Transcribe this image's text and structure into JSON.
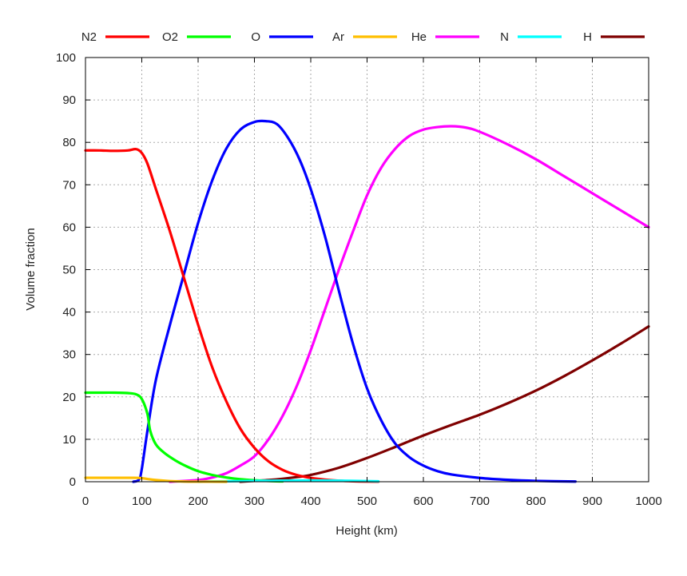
{
  "chart_data": {
    "type": "line",
    "title": "",
    "xlabel": "Height (km)",
    "ylabel": "Volume fraction",
    "xlim": [
      0,
      1000
    ],
    "ylim": [
      0,
      100
    ],
    "xticks": [
      0,
      100,
      200,
      300,
      400,
      500,
      600,
      700,
      800,
      900,
      1000
    ],
    "yticks": [
      0,
      10,
      20,
      30,
      40,
      50,
      60,
      70,
      80,
      90,
      100
    ],
    "grid": true,
    "legend_position": "top",
    "series": [
      {
        "name": "N2",
        "color": "#ff0000",
        "x": [
          0,
          25,
          50,
          75,
          90,
          100,
          110,
          125,
          150,
          175,
          200,
          225,
          250,
          275,
          300,
          325,
          350,
          375,
          400,
          425,
          450,
          475,
          500,
          520
        ],
        "y": [
          78.1,
          78.1,
          78.0,
          78.1,
          78.4,
          77.5,
          75,
          69,
          59,
          48,
          37,
          27,
          19,
          12.5,
          8,
          4.8,
          2.8,
          1.6,
          0.9,
          0.5,
          0.25,
          0.12,
          0.05,
          0.02
        ]
      },
      {
        "name": "O2",
        "color": "#00ff00",
        "x": [
          0,
          25,
          50,
          75,
          90,
          100,
          110,
          115,
          125,
          140,
          160,
          180,
          200,
          225,
          250,
          275,
          300,
          325,
          350
        ],
        "y": [
          21.0,
          21.0,
          21.0,
          20.9,
          20.6,
          19.5,
          16,
          12,
          8.8,
          6.8,
          5.0,
          3.6,
          2.5,
          1.6,
          1.0,
          0.6,
          0.35,
          0.18,
          0.08
        ]
      },
      {
        "name": "O",
        "color": "#0000ff",
        "x": [
          85,
          95,
          100,
          110,
          125,
          150,
          175,
          200,
          225,
          250,
          275,
          300,
          320,
          340,
          360,
          380,
          400,
          425,
          450,
          475,
          500,
          525,
          550,
          575,
          600,
          625,
          650,
          700,
          750,
          800,
          870
        ],
        "y": [
          0,
          0.5,
          3,
          12,
          24,
          37,
          49,
          61,
          71,
          78.5,
          83,
          84.8,
          85,
          84.3,
          81,
          76,
          69,
          58,
          45,
          32.5,
          22,
          14.5,
          9,
          5.8,
          3.8,
          2.5,
          1.7,
          0.9,
          0.45,
          0.2,
          0.05
        ]
      },
      {
        "name": "Ar",
        "color": "#ffbf00",
        "x": [
          0,
          50,
          85,
          100,
          110,
          125,
          150,
          175,
          200,
          250
        ],
        "y": [
          0.93,
          0.93,
          0.93,
          0.85,
          0.65,
          0.4,
          0.15,
          0.05,
          0.02,
          0
        ]
      },
      {
        "name": "He",
        "color": "#ff00ff",
        "x": [
          150,
          200,
          225,
          250,
          275,
          300,
          325,
          350,
          375,
          400,
          425,
          450,
          475,
          500,
          525,
          550,
          575,
          600,
          625,
          650,
          675,
          700,
          750,
          800,
          850,
          900,
          950,
          1000
        ],
        "y": [
          0,
          0.4,
          1,
          2,
          3.8,
          6,
          10,
          15.5,
          22.5,
          31,
          40.5,
          50,
          59,
          67.5,
          74,
          78.5,
          81.5,
          83,
          83.6,
          83.8,
          83.5,
          82.5,
          79.5,
          76,
          72,
          68,
          64,
          60
        ]
      },
      {
        "name": "N",
        "color": "#00ffff",
        "x": [
          200,
          300,
          400,
          450,
          500,
          520
        ],
        "y": [
          0,
          0.2,
          0.3,
          0.25,
          0.15,
          0.1
        ]
      },
      {
        "name": "H",
        "color": "#7f0000",
        "x": [
          275,
          300,
          325,
          350,
          375,
          400,
          450,
          500,
          550,
          600,
          650,
          700,
          750,
          800,
          850,
          900,
          950,
          1000
        ],
        "y": [
          0,
          0.2,
          0.4,
          0.7,
          1.1,
          1.6,
          3.3,
          5.6,
          8.2,
          10.9,
          13.4,
          15.8,
          18.5,
          21.5,
          24.9,
          28.6,
          32.5,
          36.6
        ]
      }
    ]
  }
}
